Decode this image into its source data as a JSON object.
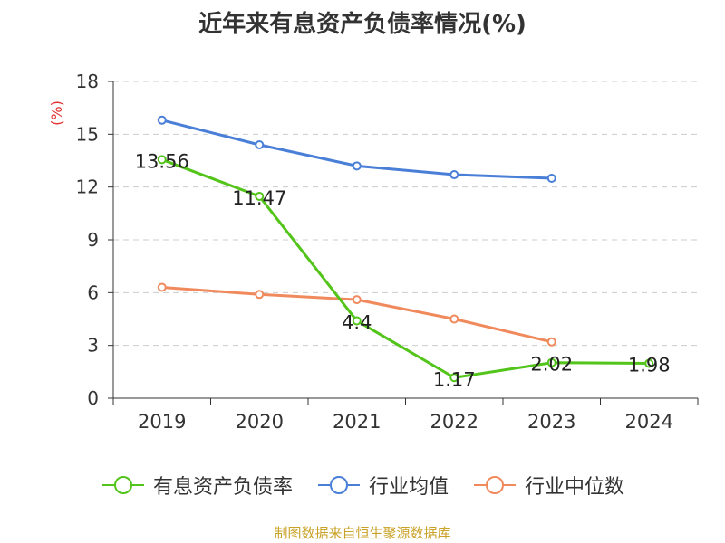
{
  "chart_data": {
    "type": "line",
    "title": "近年来有息资产负债率情况(%)",
    "ylabel": "(%)",
    "xlabel": "",
    "categories": [
      "2019",
      "2020",
      "2021",
      "2022",
      "2023",
      "2024"
    ],
    "ylim": [
      0,
      18
    ],
    "yticks": [
      0,
      3,
      6,
      9,
      12,
      15,
      18
    ],
    "grid": true,
    "legend_position": "bottom",
    "series": [
      {
        "name": "有息资产负债率",
        "color": "#52c41a",
        "values": [
          13.56,
          11.47,
          4.4,
          1.17,
          2.02,
          1.98
        ],
        "labels": [
          "13.56",
          "11.47",
          "4.4",
          "1.17",
          "2.02",
          "1.98"
        ]
      },
      {
        "name": "行业均值",
        "color": "#4a7fd8",
        "values": [
          15.8,
          14.4,
          13.2,
          12.7,
          12.5,
          null
        ]
      },
      {
        "name": "行业中位数",
        "color": "#f08a5d",
        "values": [
          6.3,
          5.9,
          5.6,
          4.5,
          3.2,
          null
        ]
      }
    ]
  },
  "source": "制图数据来自恒生聚源数据库"
}
